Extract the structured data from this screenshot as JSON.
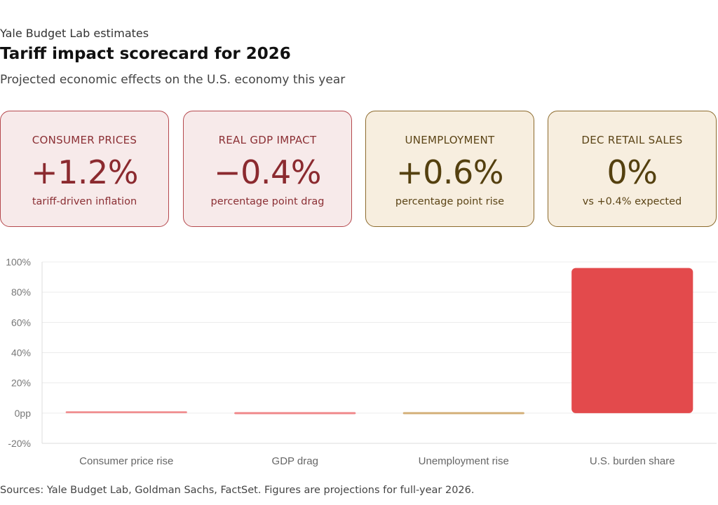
{
  "header": {
    "kicker": "Yale Budget Lab estimates",
    "title": "Tariff impact scorecard for 2026",
    "subtitle": "Projected economic effects on the U.S. economy this year"
  },
  "cards": [
    {
      "label": "CONSUMER PRICES",
      "value": "+1.2%",
      "note": "tariff-driven inflation",
      "tone": "red"
    },
    {
      "label": "REAL GDP IMPACT",
      "value": "−0.4%",
      "note": "percentage point drag",
      "tone": "red"
    },
    {
      "label": "UNEMPLOYMENT",
      "value": "+0.6%",
      "note": "percentage point rise",
      "tone": "tan"
    },
    {
      "label": "DEC RETAIL SALES",
      "value": "0%",
      "note": "vs +0.4% expected",
      "tone": "tan"
    }
  ],
  "chart_data": {
    "type": "bar",
    "categories": [
      "Consumer price rise",
      "GDP drag",
      "Unemployment rise",
      "U.S. burden share"
    ],
    "values": [
      1.2,
      -0.4,
      0.6,
      96
    ],
    "colors": [
      "#f08a8c",
      "#f08a8c",
      "#d4b07a",
      "#e34a4c"
    ],
    "ylim": [
      -20,
      100
    ],
    "yticks": [
      -20,
      0,
      20,
      40,
      60,
      80,
      100
    ],
    "ytick_labels": [
      "-20%",
      "0pp",
      "20%",
      "40%",
      "60%",
      "80%",
      "100%"
    ],
    "grid": true,
    "xlabel": "",
    "ylabel": ""
  },
  "footer": {
    "source": "Sources: Yale Budget Lab, Goldman Sachs, FactSet. Figures are projections for full-year 2026."
  }
}
